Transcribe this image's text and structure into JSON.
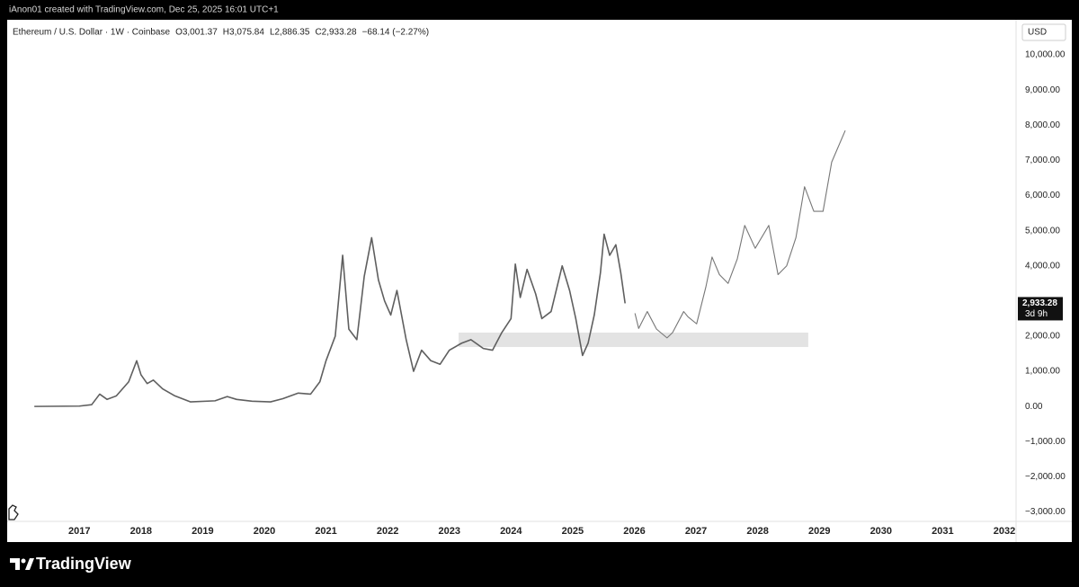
{
  "top_bar": "iAnon01 created with TradingView.com, Dec 25, 2025 16:01 UTC+1",
  "brand": "TradingView",
  "chart_data": {
    "type": "line",
    "symbol": "Ethereum / U.S. Dollar · 1W · Coinbase",
    "ohlc": [
      "O3,001.37",
      "H3,075.84",
      "L2,886.35",
      "C2,933.28",
      "−68.14 (−2.27%)"
    ],
    "currency": "USD",
    "series": [
      {
        "color": "#5f5f5f",
        "x": [
          2016.27,
          2017.0,
          2017.2,
          2017.33,
          2017.45,
          2017.6,
          2017.8,
          2017.93,
          2018.0,
          2018.1,
          2018.2,
          2018.35,
          2018.55,
          2018.8,
          2019.2,
          2019.4,
          2019.55,
          2019.8,
          2020.1,
          2020.3,
          2020.55,
          2020.75,
          2020.9,
          2021.0,
          2021.15,
          2021.27,
          2021.37,
          2021.5,
          2021.62,
          2021.74,
          2021.85,
          2021.95,
          2022.05,
          2022.15,
          2022.3,
          2022.42,
          2022.55,
          2022.7,
          2022.85,
          2023.0,
          2023.2,
          2023.35,
          2023.55,
          2023.7,
          2023.85,
          2024.0,
          2024.07,
          2024.15,
          2024.26,
          2024.4,
          2024.5,
          2024.65,
          2024.83,
          2024.95,
          2025.05,
          2025.16,
          2025.25,
          2025.35,
          2025.45,
          2025.51,
          2025.6,
          2025.7,
          2025.78,
          2025.85
        ],
        "values": [
          0,
          10,
          50,
          350,
          200,
          300,
          700,
          1300,
          900,
          650,
          750,
          500,
          300,
          130,
          160,
          280,
          200,
          150,
          130,
          220,
          380,
          350,
          700,
          1300,
          2000,
          4300,
          2200,
          1900,
          3700,
          4800,
          3600,
          3000,
          2600,
          3300,
          1900,
          1000,
          1600,
          1300,
          1200,
          1600,
          1800,
          1900,
          1650,
          1600,
          2100,
          2500,
          4050,
          3100,
          3900,
          3200,
          2500,
          2700,
          4000,
          3300,
          2500,
          1450,
          1800,
          2600,
          3800,
          4900,
          4300,
          4600,
          3800,
          2933.28
        ]
      },
      {
        "color": "#777777",
        "x": [
          2026.01,
          2026.07,
          2026.21,
          2026.36,
          2026.53,
          2026.62,
          2026.8,
          2026.87,
          2027.01,
          2027.16,
          2027.26,
          2027.38,
          2027.52,
          2027.67,
          2027.79,
          2027.96,
          2028.18,
          2028.33,
          2028.47,
          2028.62,
          2028.76,
          2028.91,
          2029.06,
          2029.2,
          2029.42
        ],
        "values": [
          2650,
          2220,
          2700,
          2200,
          1950,
          2100,
          2700,
          2550,
          2350,
          3400,
          4250,
          3750,
          3500,
          4200,
          5150,
          4500,
          5150,
          3750,
          4000,
          4800,
          6250,
          5550,
          5550,
          6950,
          7850
        ]
      }
    ],
    "zone": {
      "x": [
        2023.15,
        2028.82
      ],
      "y": [
        1690,
        2100
      ],
      "color": "#e3e3e3"
    },
    "last_price": {
      "value": 2933.28,
      "label": "2,933.28"
    },
    "countdown": "3d 9h",
    "xlim": [
      2015.83,
      2032.19
    ],
    "xticks": [
      2017,
      2018,
      2019,
      2020,
      2021,
      2022,
      2023,
      2024,
      2025,
      2026,
      2027,
      2028,
      2029,
      2030,
      2031,
      2032
    ],
    "ylim": [
      -3270,
      11000
    ],
    "yticks": [
      {
        "value": -3000,
        "label": "−3,000.00"
      },
      {
        "value": -2000,
        "label": "−2,000.00"
      },
      {
        "value": -1000,
        "label": "−1,000.00"
      },
      {
        "value": 0,
        "label": "0.00"
      },
      {
        "value": 1000,
        "label": "1,000.00"
      },
      {
        "value": 2000,
        "label": "2,000.00"
      },
      {
        "value": 4000,
        "label": "4,000.00"
      },
      {
        "value": 5000,
        "label": "5,000.00"
      },
      {
        "value": 6000,
        "label": "6,000.00"
      },
      {
        "value": 7000,
        "label": "7,000.00"
      },
      {
        "value": 8000,
        "label": "8,000.00"
      },
      {
        "value": 9000,
        "label": "9,000.00"
      },
      {
        "value": 10000,
        "label": "10,000.00"
      }
    ],
    "grid": false
  }
}
